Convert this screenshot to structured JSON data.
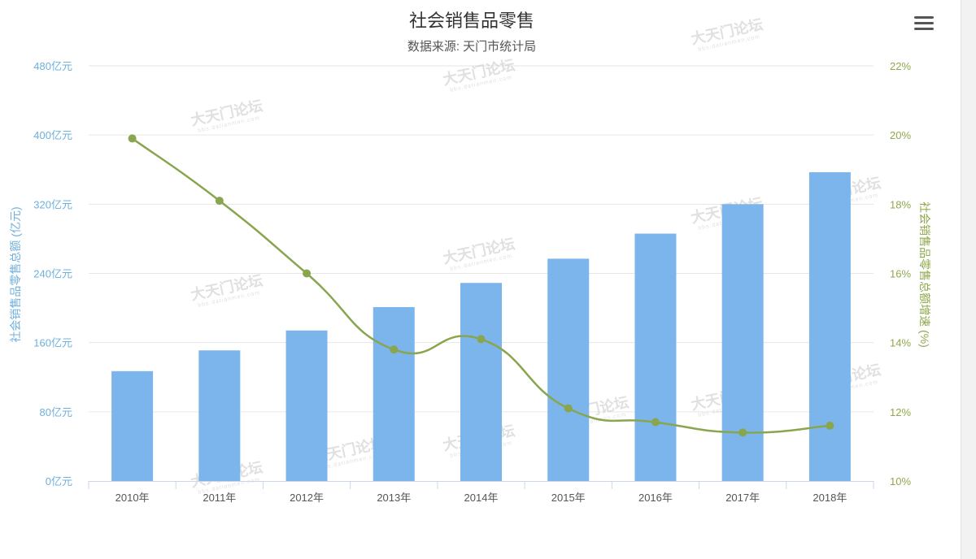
{
  "chart_data": {
    "type": "bar+line",
    "title": "社会销售品零售",
    "subtitle": "数据来源: 天门市统计局",
    "categories": [
      "2010年",
      "2011年",
      "2012年",
      "2013年",
      "2014年",
      "2015年",
      "2016年",
      "2017年",
      "2018年"
    ],
    "series": [
      {
        "type": "bar",
        "axis": "left",
        "color": "#7cb5ec",
        "values": [
          127,
          151,
          174,
          201,
          229,
          257,
          286,
          320,
          357
        ]
      },
      {
        "type": "line",
        "axis": "right",
        "color": "#89a54e",
        "values": [
          19.9,
          18.1,
          16.0,
          13.8,
          14.1,
          12.1,
          11.7,
          11.4,
          11.6
        ]
      }
    ],
    "y_left": {
      "label": "社会销售品零售总额 (亿元)",
      "min": 0,
      "max": 480,
      "ticks": [
        0,
        80,
        160,
        240,
        320,
        400,
        480
      ],
      "tick_labels": [
        "0亿元",
        "80亿元",
        "160亿元",
        "240亿元",
        "320亿元",
        "400亿元",
        "480亿元"
      ]
    },
    "y_right": {
      "label": "社会销售品零售总额增速 (%)",
      "min": 10,
      "max": 22,
      "ticks": [
        10,
        12,
        14,
        16,
        18,
        20,
        22
      ],
      "tick_labels": [
        "10%",
        "12%",
        "14%",
        "16%",
        "18%",
        "20%",
        "22%"
      ]
    },
    "grid": true
  },
  "watermark": {
    "text": "大天门论坛",
    "sub": "bbs.datianmen.com"
  },
  "colors": {
    "grid": "#e6e6e6",
    "axis": "#ccd6eb",
    "bar": "#7cb5ec",
    "line": "#89a54e"
  },
  "icons": {
    "menu": "hamburger-menu-icon"
  }
}
